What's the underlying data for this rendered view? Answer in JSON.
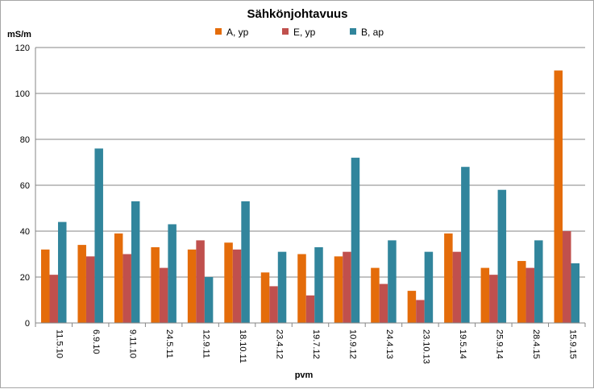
{
  "chart_data": {
    "type": "bar",
    "title": "Sähkönjohtavuus",
    "ylabel": "mS/m",
    "xlabel": "pvm",
    "ylim": [
      0,
      120
    ],
    "yticks": [
      0,
      20,
      40,
      60,
      80,
      100,
      120
    ],
    "grid": true,
    "legend_position": "top",
    "categories": [
      "11.5.10",
      "6.9.10",
      "9.11.10",
      "24.5.11",
      "12.9.11",
      "18.10.11",
      "23.4.12",
      "19.7.12",
      "10.9.12",
      "24.4.13",
      "23.10.13",
      "19.5.14",
      "25.9.14",
      "28.4.15",
      "15.9.15"
    ],
    "series": [
      {
        "name": "A, yp",
        "color": "#E46C0A",
        "values": [
          32,
          34,
          39,
          33,
          32,
          35,
          22,
          30,
          29,
          24,
          14,
          39,
          24,
          27,
          110
        ]
      },
      {
        "name": "E, yp",
        "color": "#C0504D",
        "values": [
          21,
          29,
          30,
          24,
          36,
          32,
          16,
          12,
          31,
          17,
          10,
          31,
          21,
          24,
          40
        ]
      },
      {
        "name": "B, ap",
        "color": "#31859C",
        "values": [
          44,
          76,
          53,
          43,
          20,
          53,
          31,
          33,
          72,
          36,
          31,
          68,
          58,
          36,
          26
        ]
      }
    ]
  }
}
